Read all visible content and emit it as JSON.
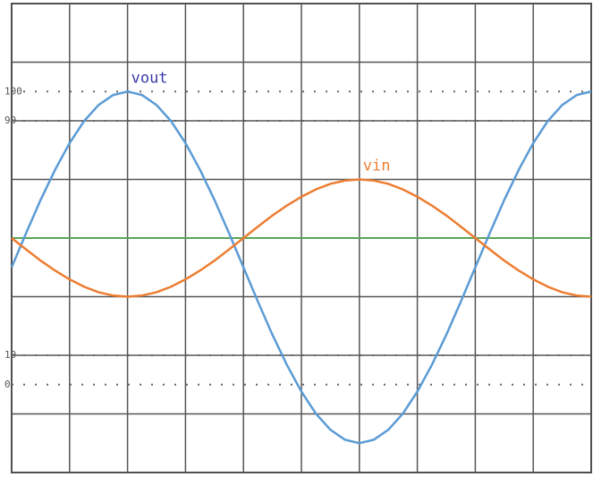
{
  "chart_data": {
    "type": "line",
    "x": [
      0,
      0.25,
      0.5,
      0.75,
      1,
      1.25,
      1.5,
      1.75,
      2,
      2.25,
      2.5,
      2.75,
      3,
      3.25,
      3.5,
      3.75,
      4,
      4.25,
      4.5,
      4.75,
      5,
      5.25,
      5.5,
      5.75,
      6,
      6.25,
      6.5,
      6.75,
      7,
      7.25,
      7.5,
      7.75,
      8,
      8.25,
      8.5,
      8.75,
      9,
      9.25,
      9.5,
      9.75,
      10
    ],
    "series": [
      {
        "name": "vout",
        "color": "#5b9bd5",
        "label_color": "#3a3aa8",
        "values": [
          40,
          51.7,
          63.0,
          73.3,
          82.4,
          89.9,
          95.4,
          98.8,
          100,
          98.8,
          95.4,
          89.9,
          82.4,
          73.3,
          63.0,
          51.7,
          40,
          28.3,
          17.0,
          6.7,
          -2.4,
          -9.9,
          -15.4,
          -18.8,
          -20,
          -18.8,
          -15.4,
          -9.9,
          -2.4,
          6.7,
          17.0,
          28.3,
          40,
          51.7,
          63.0,
          73.3,
          82.4,
          89.9,
          95.4,
          98.8,
          100
        ]
      },
      {
        "name": "vin",
        "color": "#ed7d31",
        "label_color": "#ed7d31",
        "values": [
          50,
          46.1,
          42.3,
          38.9,
          35.9,
          33.4,
          31.5,
          30.4,
          30,
          30.4,
          31.5,
          33.4,
          35.9,
          38.9,
          42.3,
          46.1,
          50,
          53.9,
          57.7,
          61.1,
          64.1,
          66.6,
          68.5,
          69.6,
          70,
          69.6,
          68.5,
          66.6,
          64.1,
          61.1,
          57.7,
          53.9,
          50,
          46.1,
          42.3,
          38.9,
          35.9,
          33.4,
          31.5,
          30.4,
          30
        ]
      }
    ],
    "xlim": [
      0,
      10
    ],
    "ylim": [
      -30,
      130
    ],
    "yticks": [
      0,
      10,
      90,
      100
    ],
    "xgrid": [
      0,
      1,
      2,
      3,
      4,
      5,
      6,
      7,
      8,
      9,
      10
    ],
    "ygrid": [
      -30,
      -10,
      10,
      30,
      50,
      70,
      90,
      110,
      130
    ],
    "reference_line": {
      "value": 50,
      "color": "#5aa55a"
    },
    "grid": true
  }
}
